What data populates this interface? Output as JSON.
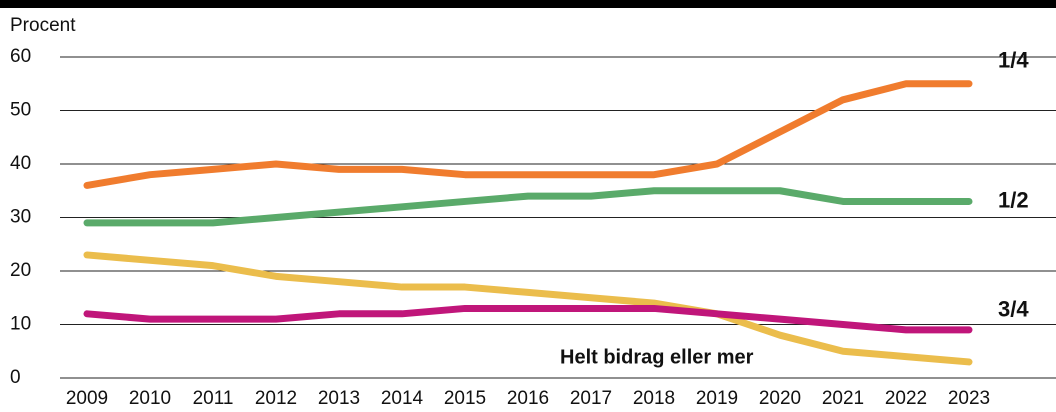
{
  "chart_data": {
    "type": "line",
    "y_label": "Procent",
    "categories": [
      "2009",
      "2010",
      "2011",
      "2012",
      "2013",
      "2014",
      "2015",
      "2016",
      "2017",
      "2018",
      "2019",
      "2020",
      "2021",
      "2022",
      "2023"
    ],
    "series": [
      {
        "name": "1/4",
        "color": "#f07c2e",
        "values": [
          36,
          38,
          39,
          40,
          39,
          39,
          38,
          38,
          38,
          38,
          40,
          46,
          52,
          55,
          55
        ]
      },
      {
        "name": "1/2",
        "color": "#5aaa6a",
        "values": [
          29,
          29,
          29,
          30,
          31,
          32,
          33,
          34,
          34,
          35,
          35,
          35,
          33,
          33,
          33
        ]
      },
      {
        "name": "Helt bidrag eller mer",
        "color": "#ebbd4c",
        "values": [
          23,
          22,
          21,
          19,
          18,
          17,
          17,
          16,
          15,
          14,
          12,
          8,
          5,
          4,
          3
        ]
      },
      {
        "name": "3/4",
        "color": "#c0167a",
        "values": [
          12,
          11,
          11,
          11,
          12,
          12,
          13,
          13,
          13,
          13,
          12,
          11,
          10,
          9,
          9
        ]
      }
    ],
    "ylim": [
      0,
      60
    ],
    "yticks": [
      0,
      10,
      20,
      30,
      40,
      50,
      60
    ],
    "grid": true
  }
}
